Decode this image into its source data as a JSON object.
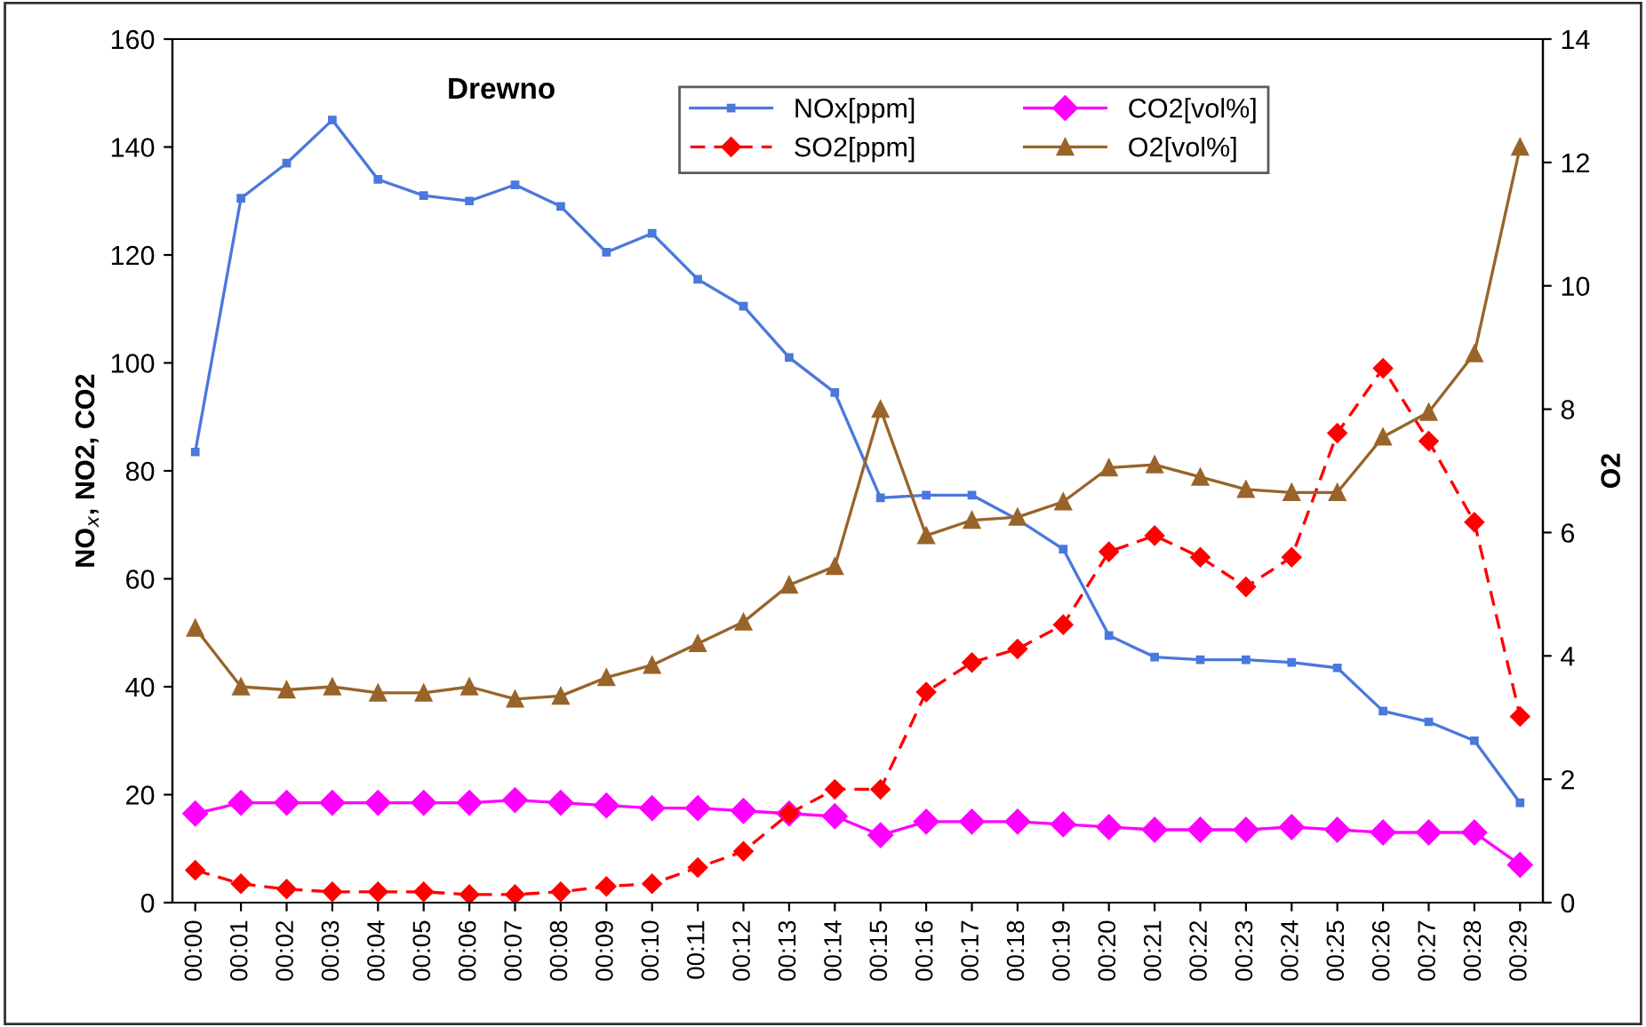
{
  "chart_data": {
    "type": "line",
    "title": "Drewno",
    "ylabel": "NO$_{x}$, NO2, CO2",
    "y2label": "O2",
    "categories": [
      "00:00",
      "00:01",
      "00:02",
      "00:03",
      "00:04",
      "00:05",
      "00:06",
      "00:07",
      "00:08",
      "00:09",
      "00:10",
      "00:11",
      "00:12",
      "00:13",
      "00:14",
      "00:15",
      "00:16",
      "00:17",
      "00:18",
      "00:19",
      "00:20",
      "00:21",
      "00:22",
      "00:23",
      "00:24",
      "00:25",
      "00:26",
      "00:27",
      "00:28",
      "00:29"
    ],
    "series": [
      {
        "name": "NOx[ppm]",
        "color": "#4a78dc",
        "marker": "square",
        "line_style": "solid",
        "values": [
          83.5,
          130.5,
          137,
          145,
          134,
          131,
          130,
          133,
          129,
          120.5,
          124,
          115.5,
          110.5,
          101,
          94.5,
          75,
          75.5,
          75.5,
          71,
          65.5,
          49.5,
          45.5,
          45,
          45,
          44.5,
          43.5,
          35.5,
          33.5,
          30,
          18.5
        ]
      },
      {
        "name": "CO2[vol%]",
        "color": "#ff00ff",
        "marker": "diamond",
        "line_style": "solid",
        "values": [
          16.5,
          18.5,
          18.5,
          18.5,
          18.5,
          18.5,
          18.5,
          19,
          18.5,
          18,
          17.5,
          17.5,
          17,
          16.5,
          16,
          12.5,
          15,
          15,
          15,
          14.5,
          14,
          13.5,
          13.5,
          13.5,
          14,
          13.5,
          13,
          13,
          13,
          7
        ]
      },
      {
        "name": "SO2[ppm]",
        "color": "#ff0000",
        "marker": "diamond",
        "line_style": "dashed",
        "values": [
          6,
          3.5,
          2.5,
          2,
          2,
          2,
          1.5,
          1.5,
          2,
          3,
          3.5,
          6.5,
          9.5,
          16.5,
          21,
          21,
          39,
          44.5,
          47,
          51.5,
          65,
          68,
          64,
          58.5,
          64,
          87,
          99,
          85.5,
          70.5,
          34.5
        ]
      },
      {
        "name": "O2[vol%]",
        "color": "#99642a",
        "marker": "triangle",
        "line_style": "solid",
        "axis": "y2",
        "values": [
          4.45,
          3.5,
          3.45,
          3.5,
          3.4,
          3.4,
          3.5,
          3.3,
          3.35,
          3.65,
          3.85,
          4.2,
          4.55,
          5.15,
          5.45,
          8,
          5.95,
          6.2,
          6.25,
          6.5,
          7.05,
          7.1,
          6.9,
          6.7,
          6.65,
          6.65,
          7.55,
          7.95,
          8.9,
          12.25
        ]
      }
    ],
    "ylim": [
      0,
      160
    ],
    "yticks": [
      0,
      20,
      40,
      60,
      80,
      100,
      120,
      140,
      160
    ],
    "y2lim": [
      0,
      14
    ],
    "y2ticks": [
      0,
      2,
      4,
      6,
      8,
      10,
      12,
      14
    ],
    "grid": false,
    "legend": "top right"
  }
}
